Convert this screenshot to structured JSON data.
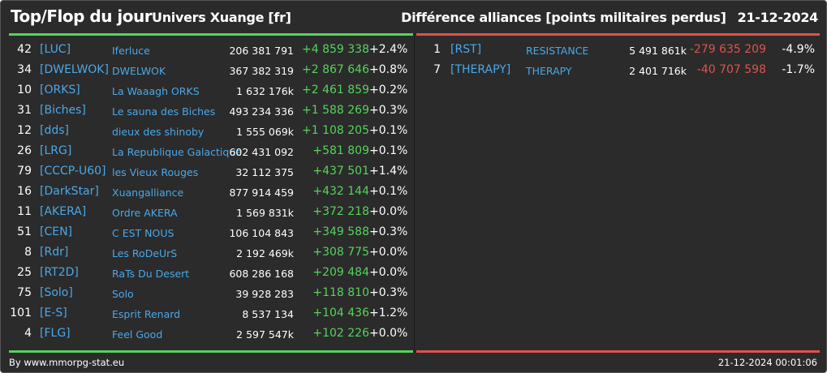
{
  "header": {
    "title": "Top/Flop du jour",
    "subtitle": "Univers Xuange [fr]",
    "right_title": "Différence alliances [points militaires perdus]",
    "date": "21-12-2024"
  },
  "colors": {
    "background": "#2b2b2b",
    "tag": "#4aa8e8",
    "positive": "#55d35a",
    "negative": "#e0524b"
  },
  "top": [
    {
      "rank": "42",
      "tag": "[LUC]",
      "name": "Iferluce",
      "points": "206 381 791",
      "diff": "+4 859 338",
      "pct": "+2.4%"
    },
    {
      "rank": "34",
      "tag": "[DWELWOK]",
      "name": "DWELWOK",
      "points": "367 382 319",
      "diff": "+2 867 646",
      "pct": "+0.8%"
    },
    {
      "rank": "10",
      "tag": "[ORKS]",
      "name": "La Waaagh ORKS",
      "points": "1 632 176k",
      "diff": "+2 461 859",
      "pct": "+0.2%"
    },
    {
      "rank": "31",
      "tag": "[Biches]",
      "name": "Le sauna des Biches",
      "points": "493 234 336",
      "diff": "+1 588 269",
      "pct": "+0.3%"
    },
    {
      "rank": "12",
      "tag": "[dds]",
      "name": "dieux des shinoby",
      "points": "1 555 069k",
      "diff": "+1 108 205",
      "pct": "+0.1%"
    },
    {
      "rank": "26",
      "tag": "[LRG]",
      "name": "La Republique Galactique",
      "points": "602 431 092",
      "diff": "+581 809",
      "pct": "+0.1%"
    },
    {
      "rank": "79",
      "tag": "[CCCP-U60]",
      "name": "les Vieux Rouges",
      "points": "32 112 375",
      "diff": "+437 501",
      "pct": "+1.4%"
    },
    {
      "rank": "16",
      "tag": "[DarkStar]",
      "name": "Xuangalliance",
      "points": "877 914 459",
      "diff": "+432 144",
      "pct": "+0.1%"
    },
    {
      "rank": "11",
      "tag": "[AKERA]",
      "name": "Ordre AKERA",
      "points": "1 569 831k",
      "diff": "+372 218",
      "pct": "+0.0%"
    },
    {
      "rank": "51",
      "tag": "[CEN]",
      "name": "C EST NOUS",
      "points": "106 104 843",
      "diff": "+349 588",
      "pct": "+0.3%"
    },
    {
      "rank": "8",
      "tag": "[Rdr]",
      "name": "Les RoDeUrS",
      "points": "2 192 469k",
      "diff": "+308 775",
      "pct": "+0.0%"
    },
    {
      "rank": "25",
      "tag": "[RT2D]",
      "name": "RaTs Du Desert",
      "points": "608 286 168",
      "diff": "+209 484",
      "pct": "+0.0%"
    },
    {
      "rank": "75",
      "tag": "[Solo]",
      "name": "Solo",
      "points": "39 928 283",
      "diff": "+118 810",
      "pct": "+0.3%"
    },
    {
      "rank": "101",
      "tag": "[E-S]",
      "name": "Esprit Renard",
      "points": "8 537 134",
      "diff": "+104 436",
      "pct": "+1.2%"
    },
    {
      "rank": "4",
      "tag": "[FLG]",
      "name": "Feel Good",
      "points": "2 597 547k",
      "diff": "+102 226",
      "pct": "+0.0%"
    }
  ],
  "flop": [
    {
      "rank": "1",
      "tag": "[RST]",
      "name": "RESISTANCE",
      "points": "5 491 861k",
      "diff": "-279 635 209",
      "pct": "-4.9%"
    },
    {
      "rank": "7",
      "tag": "[THERAPY]",
      "name": "THERAPY",
      "points": "2 401 716k",
      "diff": "-40 707 598",
      "pct": "-1.7%"
    }
  ],
  "footer": {
    "credit": "By www.mmorpg-stat.eu",
    "timestamp": "21-12-2024 00:01:06"
  }
}
